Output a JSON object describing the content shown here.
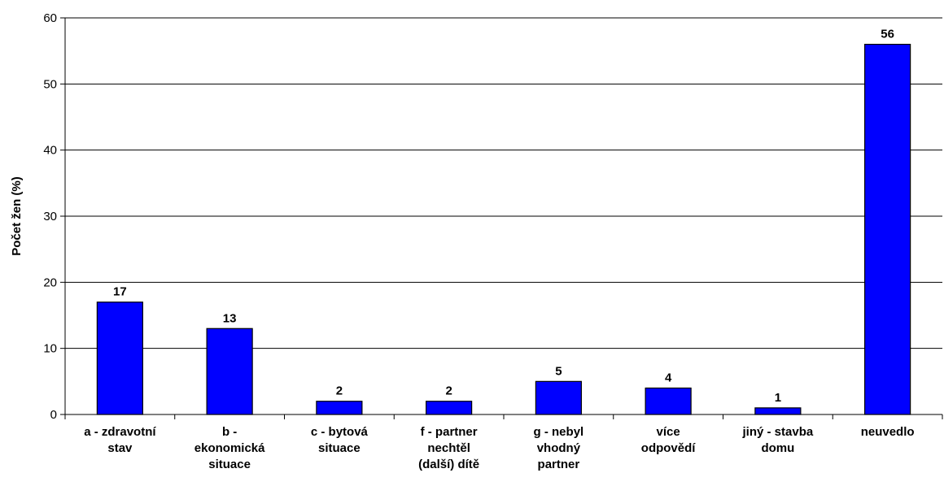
{
  "chart_data": {
    "type": "bar",
    "title": "",
    "xlabel": "",
    "ylabel": "Počet žen (%)",
    "ylim": [
      0,
      60
    ],
    "yticks": [
      0,
      10,
      20,
      30,
      40,
      50,
      60
    ],
    "grid": true,
    "legend": "none",
    "bar_color": "#0000FF",
    "categories": [
      [
        "a - zdravotní",
        "stav"
      ],
      [
        "b -",
        "ekonomická",
        "situace"
      ],
      [
        "c - bytová",
        "situace"
      ],
      [
        "f - partner",
        "nechtěl",
        "(další) dítě"
      ],
      [
        "g - nebyl",
        "vhodný",
        "partner"
      ],
      [
        "více",
        "odpovědí"
      ],
      [
        "jiný - stavba",
        "domu"
      ],
      [
        "neuvedlo"
      ]
    ],
    "values": [
      17,
      13,
      2,
      2,
      5,
      4,
      1,
      56
    ]
  }
}
